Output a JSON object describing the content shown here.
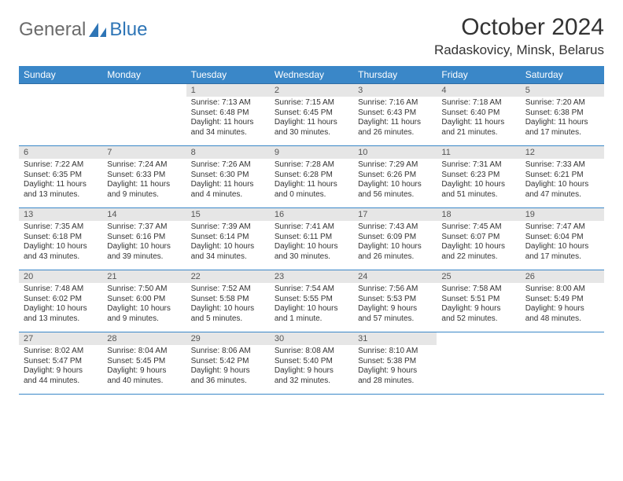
{
  "logo": {
    "main": "General",
    "sub": "Blue"
  },
  "title": "October 2024",
  "location": "Radaskovicy, Minsk, Belarus",
  "colors": {
    "brand_blue": "#2e75b6",
    "header_bg": "#3a87c8",
    "header_text": "#ffffff",
    "daynum_bg": "#e6e6e6",
    "text": "#333333",
    "logo_grey": "#6b6b6b",
    "rule": "#3a87c8",
    "page_bg": "#ffffff"
  },
  "day_names": [
    "Sunday",
    "Monday",
    "Tuesday",
    "Wednesday",
    "Thursday",
    "Friday",
    "Saturday"
  ],
  "weeks": [
    [
      null,
      null,
      {
        "n": "1",
        "sr": "Sunrise: 7:13 AM",
        "ss": "Sunset: 6:48 PM",
        "d1": "Daylight: 11 hours",
        "d2": "and 34 minutes."
      },
      {
        "n": "2",
        "sr": "Sunrise: 7:15 AM",
        "ss": "Sunset: 6:45 PM",
        "d1": "Daylight: 11 hours",
        "d2": "and 30 minutes."
      },
      {
        "n": "3",
        "sr": "Sunrise: 7:16 AM",
        "ss": "Sunset: 6:43 PM",
        "d1": "Daylight: 11 hours",
        "d2": "and 26 minutes."
      },
      {
        "n": "4",
        "sr": "Sunrise: 7:18 AM",
        "ss": "Sunset: 6:40 PM",
        "d1": "Daylight: 11 hours",
        "d2": "and 21 minutes."
      },
      {
        "n": "5",
        "sr": "Sunrise: 7:20 AM",
        "ss": "Sunset: 6:38 PM",
        "d1": "Daylight: 11 hours",
        "d2": "and 17 minutes."
      }
    ],
    [
      {
        "n": "6",
        "sr": "Sunrise: 7:22 AM",
        "ss": "Sunset: 6:35 PM",
        "d1": "Daylight: 11 hours",
        "d2": "and 13 minutes."
      },
      {
        "n": "7",
        "sr": "Sunrise: 7:24 AM",
        "ss": "Sunset: 6:33 PM",
        "d1": "Daylight: 11 hours",
        "d2": "and 9 minutes."
      },
      {
        "n": "8",
        "sr": "Sunrise: 7:26 AM",
        "ss": "Sunset: 6:30 PM",
        "d1": "Daylight: 11 hours",
        "d2": "and 4 minutes."
      },
      {
        "n": "9",
        "sr": "Sunrise: 7:28 AM",
        "ss": "Sunset: 6:28 PM",
        "d1": "Daylight: 11 hours",
        "d2": "and 0 minutes."
      },
      {
        "n": "10",
        "sr": "Sunrise: 7:29 AM",
        "ss": "Sunset: 6:26 PM",
        "d1": "Daylight: 10 hours",
        "d2": "and 56 minutes."
      },
      {
        "n": "11",
        "sr": "Sunrise: 7:31 AM",
        "ss": "Sunset: 6:23 PM",
        "d1": "Daylight: 10 hours",
        "d2": "and 51 minutes."
      },
      {
        "n": "12",
        "sr": "Sunrise: 7:33 AM",
        "ss": "Sunset: 6:21 PM",
        "d1": "Daylight: 10 hours",
        "d2": "and 47 minutes."
      }
    ],
    [
      {
        "n": "13",
        "sr": "Sunrise: 7:35 AM",
        "ss": "Sunset: 6:18 PM",
        "d1": "Daylight: 10 hours",
        "d2": "and 43 minutes."
      },
      {
        "n": "14",
        "sr": "Sunrise: 7:37 AM",
        "ss": "Sunset: 6:16 PM",
        "d1": "Daylight: 10 hours",
        "d2": "and 39 minutes."
      },
      {
        "n": "15",
        "sr": "Sunrise: 7:39 AM",
        "ss": "Sunset: 6:14 PM",
        "d1": "Daylight: 10 hours",
        "d2": "and 34 minutes."
      },
      {
        "n": "16",
        "sr": "Sunrise: 7:41 AM",
        "ss": "Sunset: 6:11 PM",
        "d1": "Daylight: 10 hours",
        "d2": "and 30 minutes."
      },
      {
        "n": "17",
        "sr": "Sunrise: 7:43 AM",
        "ss": "Sunset: 6:09 PM",
        "d1": "Daylight: 10 hours",
        "d2": "and 26 minutes."
      },
      {
        "n": "18",
        "sr": "Sunrise: 7:45 AM",
        "ss": "Sunset: 6:07 PM",
        "d1": "Daylight: 10 hours",
        "d2": "and 22 minutes."
      },
      {
        "n": "19",
        "sr": "Sunrise: 7:47 AM",
        "ss": "Sunset: 6:04 PM",
        "d1": "Daylight: 10 hours",
        "d2": "and 17 minutes."
      }
    ],
    [
      {
        "n": "20",
        "sr": "Sunrise: 7:48 AM",
        "ss": "Sunset: 6:02 PM",
        "d1": "Daylight: 10 hours",
        "d2": "and 13 minutes."
      },
      {
        "n": "21",
        "sr": "Sunrise: 7:50 AM",
        "ss": "Sunset: 6:00 PM",
        "d1": "Daylight: 10 hours",
        "d2": "and 9 minutes."
      },
      {
        "n": "22",
        "sr": "Sunrise: 7:52 AM",
        "ss": "Sunset: 5:58 PM",
        "d1": "Daylight: 10 hours",
        "d2": "and 5 minutes."
      },
      {
        "n": "23",
        "sr": "Sunrise: 7:54 AM",
        "ss": "Sunset: 5:55 PM",
        "d1": "Daylight: 10 hours",
        "d2": "and 1 minute."
      },
      {
        "n": "24",
        "sr": "Sunrise: 7:56 AM",
        "ss": "Sunset: 5:53 PM",
        "d1": "Daylight: 9 hours",
        "d2": "and 57 minutes."
      },
      {
        "n": "25",
        "sr": "Sunrise: 7:58 AM",
        "ss": "Sunset: 5:51 PM",
        "d1": "Daylight: 9 hours",
        "d2": "and 52 minutes."
      },
      {
        "n": "26",
        "sr": "Sunrise: 8:00 AM",
        "ss": "Sunset: 5:49 PM",
        "d1": "Daylight: 9 hours",
        "d2": "and 48 minutes."
      }
    ],
    [
      {
        "n": "27",
        "sr": "Sunrise: 8:02 AM",
        "ss": "Sunset: 5:47 PM",
        "d1": "Daylight: 9 hours",
        "d2": "and 44 minutes."
      },
      {
        "n": "28",
        "sr": "Sunrise: 8:04 AM",
        "ss": "Sunset: 5:45 PM",
        "d1": "Daylight: 9 hours",
        "d2": "and 40 minutes."
      },
      {
        "n": "29",
        "sr": "Sunrise: 8:06 AM",
        "ss": "Sunset: 5:42 PM",
        "d1": "Daylight: 9 hours",
        "d2": "and 36 minutes."
      },
      {
        "n": "30",
        "sr": "Sunrise: 8:08 AM",
        "ss": "Sunset: 5:40 PM",
        "d1": "Daylight: 9 hours",
        "d2": "and 32 minutes."
      },
      {
        "n": "31",
        "sr": "Sunrise: 8:10 AM",
        "ss": "Sunset: 5:38 PM",
        "d1": "Daylight: 9 hours",
        "d2": "and 28 minutes."
      },
      null,
      null
    ]
  ]
}
